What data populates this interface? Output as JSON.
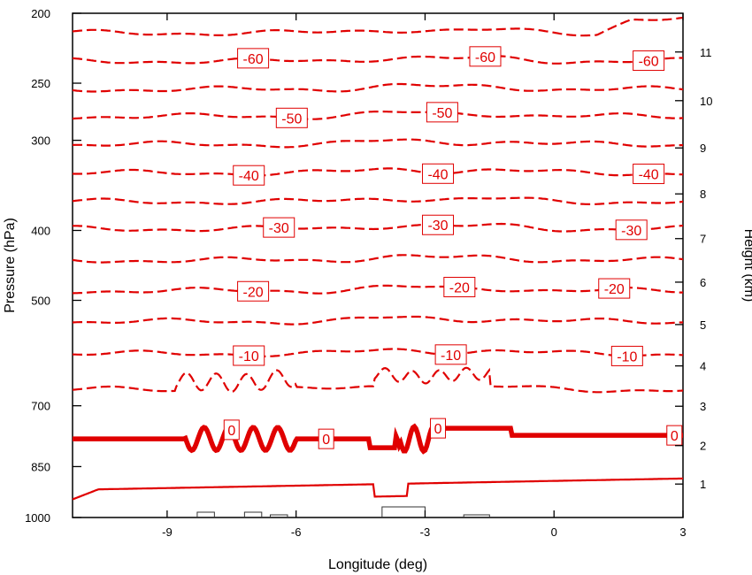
{
  "chart_data": {
    "type": "contour",
    "xlabel": "Longitude (deg)",
    "ylabel": "Pressure (hPa)",
    "y2label": "Height (km)",
    "xlim": [
      -11.2,
      3.0
    ],
    "ylim_pressure": [
      1000,
      200
    ],
    "y_scale": "log-pressure",
    "x_ticks": [
      -9,
      -6,
      -3,
      0,
      3
    ],
    "x_tick_labels": [
      "-9",
      "-6",
      "-3",
      "0",
      "3"
    ],
    "y_ticks": [
      200,
      250,
      300,
      400,
      500,
      700,
      850,
      1000
    ],
    "y_tick_labels": [
      "200",
      "250",
      "300",
      "400",
      "500",
      "700",
      "850",
      "1000"
    ],
    "y2_ticks": [
      1,
      2,
      3,
      4,
      5,
      6,
      7,
      8,
      9,
      10,
      11
    ],
    "y2_tick_labels": [
      "1",
      "2",
      "3",
      "4",
      "5",
      "6",
      "7",
      "8",
      "9",
      "10",
      "11"
    ],
    "contour_color": "#e00000",
    "contours": [
      {
        "level": -65,
        "pressure": 213,
        "labeled": false
      },
      {
        "level": -60,
        "pressure": 233,
        "labeled": true,
        "label": "-60",
        "label_x": [
          -7.0,
          -1.6,
          2.2
        ]
      },
      {
        "level": -55,
        "pressure": 255,
        "labeled": false
      },
      {
        "level": -50,
        "pressure": 278,
        "labeled": true,
        "label": "-50",
        "label_x": [
          -6.1,
          -2.6
        ]
      },
      {
        "level": -45,
        "pressure": 304,
        "labeled": false
      },
      {
        "level": -40,
        "pressure": 333,
        "labeled": true,
        "label": "-40",
        "label_x": [
          -7.1,
          -2.7,
          2.2
        ]
      },
      {
        "level": -35,
        "pressure": 365,
        "labeled": false
      },
      {
        "level": -30,
        "pressure": 398,
        "labeled": true,
        "label": "-30",
        "label_x": [
          -6.4,
          -2.7,
          1.8
        ]
      },
      {
        "level": -25,
        "pressure": 440,
        "labeled": false
      },
      {
        "level": -20,
        "pressure": 485,
        "labeled": true,
        "label": "-20",
        "label_x": [
          -7.0,
          -2.2,
          1.4
        ]
      },
      {
        "level": -15,
        "pressure": 535,
        "labeled": false
      },
      {
        "level": -10,
        "pressure": 593,
        "labeled": true,
        "label": "-10",
        "label_x": [
          -7.1,
          -2.4,
          1.7
        ]
      },
      {
        "level": -5,
        "pressure": 665,
        "labeled": false
      },
      {
        "level": 0,
        "pressure": 765,
        "labeled": true,
        "label": "0",
        "label_x": [
          -7.5,
          -5.3,
          -2.7,
          2.8
        ]
      },
      {
        "level": 5,
        "pressure": 895,
        "labeled": false
      }
    ],
    "grid": false,
    "legend": "none"
  }
}
